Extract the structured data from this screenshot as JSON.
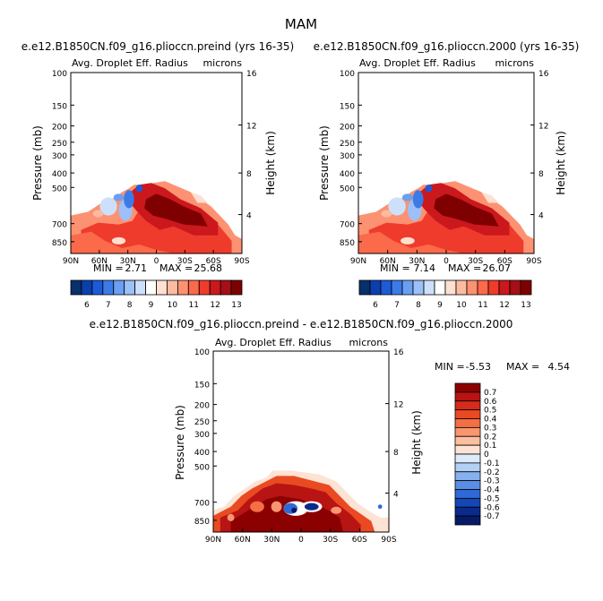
{
  "figure": {
    "title": "MAM"
  },
  "chart_data": [
    {
      "type": "heatmap",
      "title": "e.e12.B1850CN.f09_g16.plioccn.preind (yrs 16-35)",
      "subtitle_left": "Avg. Droplet Eff. Radius",
      "subtitle_right": "microns",
      "ylabel": "Pressure (mb)",
      "ylabel_right": "Height (km)",
      "x_ticks": [
        "90N",
        "60N",
        "30N",
        "0",
        "30S",
        "60S",
        "90S"
      ],
      "y_ticks": [
        "100",
        "150",
        "200",
        "250",
        "300",
        "400",
        "500",
        "700",
        "850"
      ],
      "y_ticks_right": [
        "16",
        "12",
        "8",
        "4"
      ],
      "stats": {
        "min_label": "MIN =",
        "min": "2.71",
        "max_label": "MAX =",
        "max": "25.68"
      },
      "colorbar": {
        "orientation": "horizontal",
        "labels": [
          "6",
          "7",
          "8",
          "9",
          "10",
          "11",
          "12",
          "13"
        ],
        "colors": [
          "#08306b",
          "#0c3fae",
          "#1d5bd6",
          "#3a7be8",
          "#6a9ff2",
          "#9cc0f7",
          "#cde0fb",
          "#ffffff",
          "#fde0d0",
          "#fcbba1",
          "#fc9272",
          "#fb6a4a",
          "#ef3b2c",
          "#cb181d",
          "#a50f15",
          "#7f0000"
        ]
      }
    },
    {
      "type": "heatmap",
      "title": "e.e12.B1850CN.f09_g16.plioccn.2000 (yrs 16-35)",
      "subtitle_left": "Avg. Droplet Eff. Radius",
      "subtitle_right": "microns",
      "ylabel": "Pressure (mb)",
      "ylabel_right": "Height (km)",
      "x_ticks": [
        "90N",
        "60N",
        "30N",
        "0",
        "30S",
        "60S",
        "90S"
      ],
      "y_ticks": [
        "100",
        "150",
        "200",
        "250",
        "300",
        "400",
        "500",
        "700",
        "850"
      ],
      "y_ticks_right": [
        "16",
        "12",
        "8",
        "4"
      ],
      "stats": {
        "min_label": "MIN =",
        "min": "7.14",
        "max_label": "MAX =",
        "max": "26.07"
      },
      "colorbar": {
        "orientation": "horizontal",
        "labels": [
          "6",
          "7",
          "8",
          "9",
          "10",
          "11",
          "12",
          "13"
        ],
        "colors": [
          "#08306b",
          "#0c3fae",
          "#1d5bd6",
          "#3a7be8",
          "#6a9ff2",
          "#9cc0f7",
          "#cde0fb",
          "#ffffff",
          "#fde0d0",
          "#fcbba1",
          "#fc9272",
          "#fb6a4a",
          "#ef3b2c",
          "#cb181d",
          "#a50f15",
          "#7f0000"
        ]
      }
    },
    {
      "type": "heatmap",
      "title": "e.e12.B1850CN.f09_g16.plioccn.preind - e.e12.B1850CN.f09_g16.plioccn.2000",
      "subtitle_left": "Avg. Droplet Eff. Radius",
      "subtitle_right": "microns",
      "ylabel": "Pressure (mb)",
      "ylabel_right": "Height (km)",
      "x_ticks": [
        "90N",
        "60N",
        "30N",
        "0",
        "30S",
        "60S",
        "90S"
      ],
      "y_ticks": [
        "100",
        "150",
        "200",
        "250",
        "300",
        "400",
        "500",
        "700",
        "850"
      ],
      "y_ticks_right": [
        "16",
        "12",
        "8",
        "4"
      ],
      "stats": {
        "min_label": "MIN =",
        "min": "-5.53",
        "max_label": "MAX =",
        "max": "4.54"
      },
      "colorbar": {
        "orientation": "vertical",
        "labels": [
          "0.7",
          "0.6",
          "0.5",
          "0.4",
          "0.3",
          "0.2",
          "0.1",
          "0",
          "-0.1",
          "-0.2",
          "-0.3",
          "-0.4",
          "-0.5",
          "-0.6",
          "-0.7"
        ],
        "colors": [
          "#8b0000",
          "#b81414",
          "#d62a1a",
          "#ea4a22",
          "#f46f44",
          "#f99670",
          "#fcbfa0",
          "#fde3d3",
          "#dcebfb",
          "#b3d0f5",
          "#86b1ee",
          "#5a8ee4",
          "#2f69d6",
          "#1447b6",
          "#0b2a8c",
          "#061a66"
        ]
      }
    }
  ]
}
